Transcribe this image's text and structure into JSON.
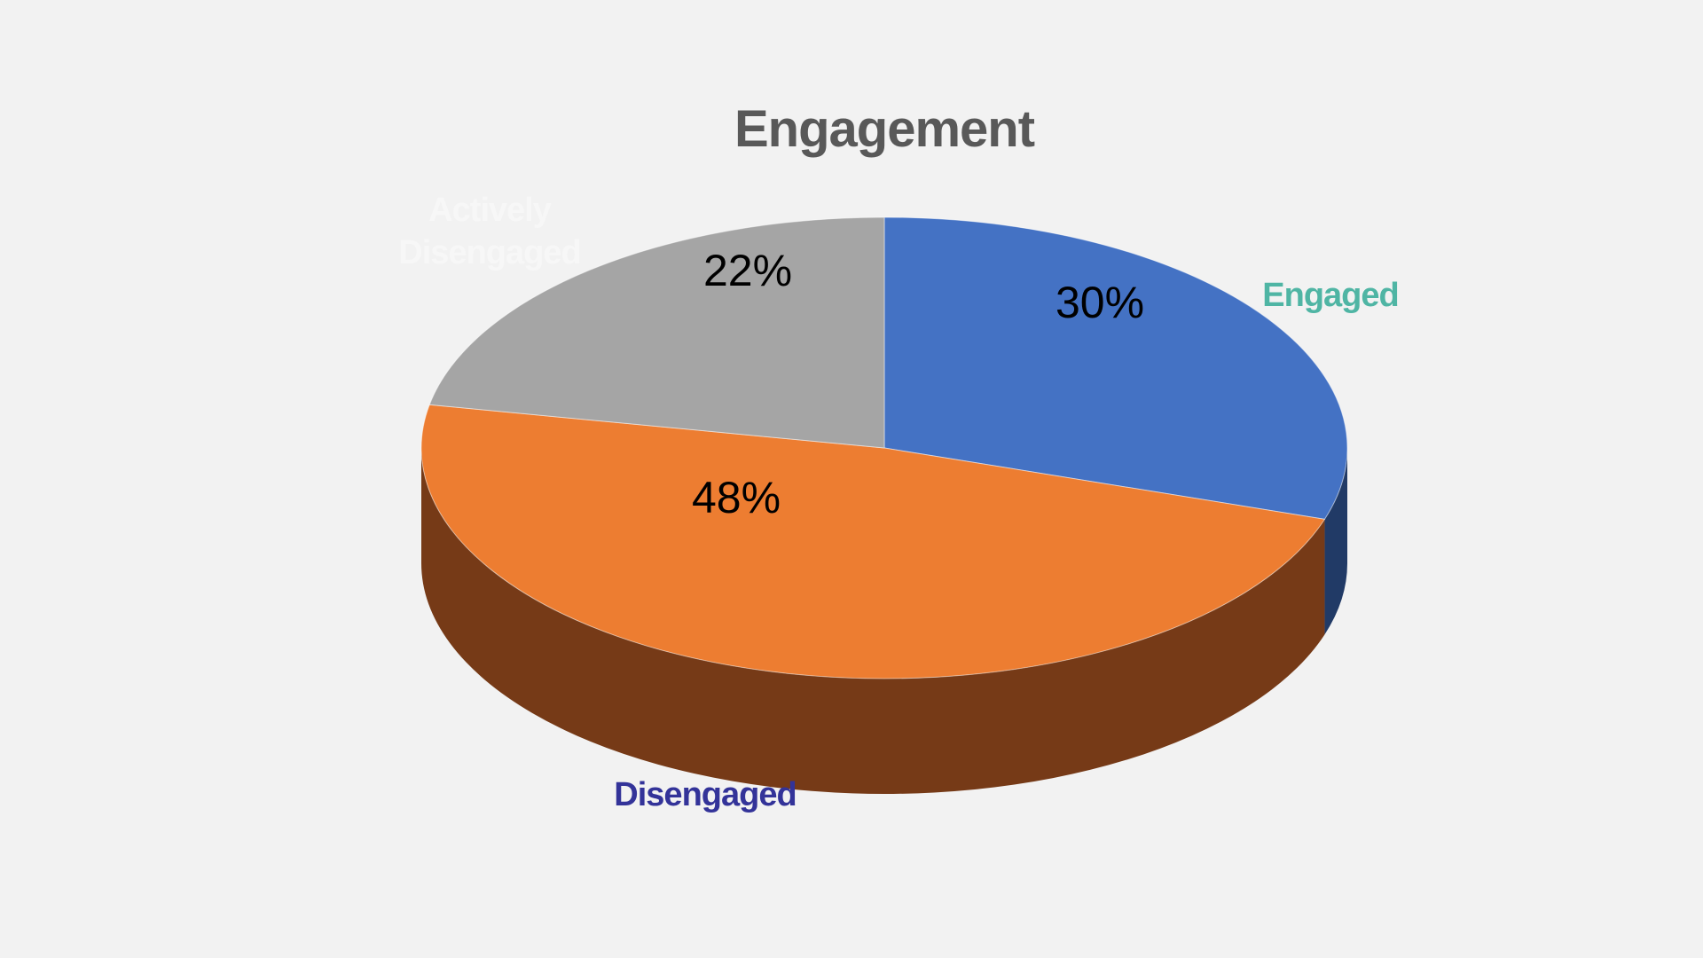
{
  "chart_data": {
    "type": "pie",
    "style": "3d",
    "title": "Engagement",
    "start_angle": "top",
    "direction": "clockwise",
    "slices": [
      {
        "category": "Engaged",
        "value": 30,
        "data_label": "30%",
        "color": "#4472c4",
        "side_color": "#213a66",
        "category_label_color": "#4fb5a4"
      },
      {
        "category": "Disengaged",
        "value": 48,
        "data_label": "48%",
        "color": "#ed7d31",
        "side_color": "#763a17",
        "category_label_color": "#333399"
      },
      {
        "category": "Actively Disengaged",
        "value": 22,
        "data_label": "22%",
        "color": "#a5a5a5",
        "side_color": "#595959",
        "category_label_color": "#f7f7f7"
      }
    ],
    "title_color": "#595959",
    "data_label_color": "#000000",
    "background_color": "#f2f2f2"
  }
}
